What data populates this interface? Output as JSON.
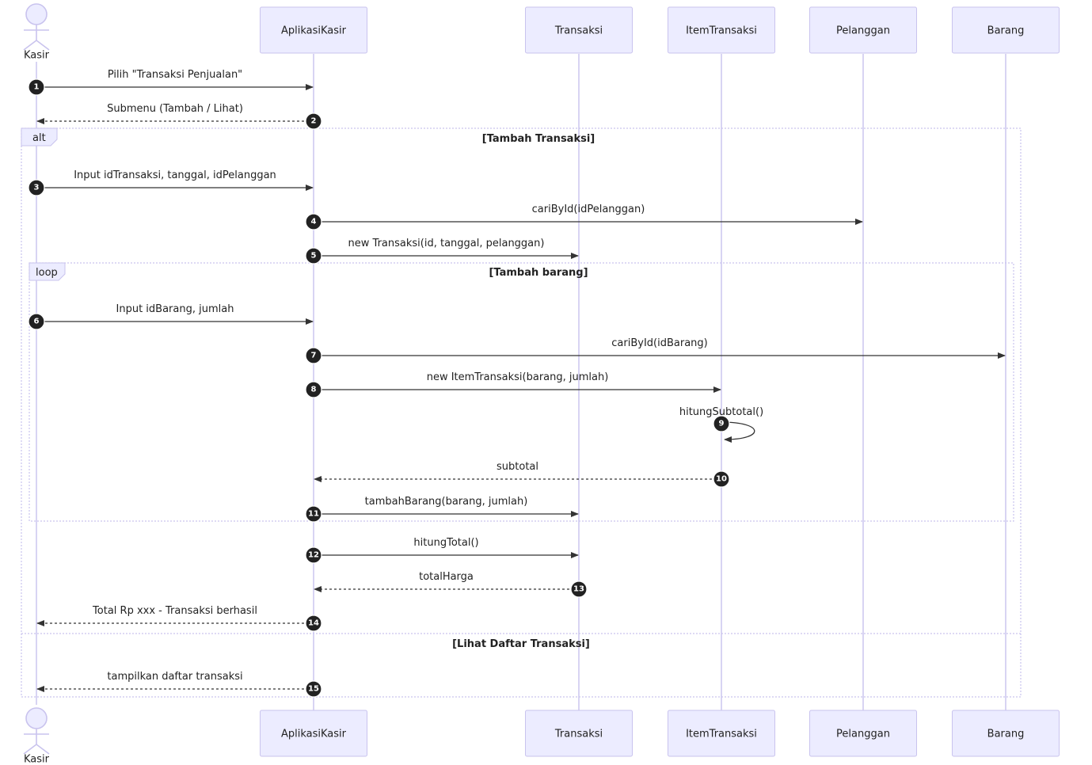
{
  "actors": [
    {
      "id": "kasir",
      "label": "Kasir",
      "kind": "person"
    },
    {
      "id": "aplikasi",
      "label": "AplikasiKasir",
      "kind": "box"
    },
    {
      "id": "transaksi",
      "label": "Transaksi",
      "kind": "box"
    },
    {
      "id": "item",
      "label": "ItemTransaksi",
      "kind": "box"
    },
    {
      "id": "pelanggan",
      "label": "Pelanggan",
      "kind": "box"
    },
    {
      "id": "barang",
      "label": "Barang",
      "kind": "box"
    }
  ],
  "messages": [
    {
      "num": "1",
      "from": "kasir",
      "to": "aplikasi",
      "text": "Pilih \"Transaksi Penjualan\"",
      "style": "solid"
    },
    {
      "num": "2",
      "from": "aplikasi",
      "to": "kasir",
      "text": "Submenu (Tambah / Lihat)",
      "style": "dashed"
    },
    {
      "num": "3",
      "from": "kasir",
      "to": "aplikasi",
      "text": "Input idTransaksi, tanggal, idPelanggan",
      "style": "solid"
    },
    {
      "num": "4",
      "from": "aplikasi",
      "to": "pelanggan",
      "text": "cariById(idPelanggan)",
      "style": "solid"
    },
    {
      "num": "5",
      "from": "aplikasi",
      "to": "transaksi",
      "text": "new Transaksi(id, tanggal, pelanggan)",
      "style": "solid"
    },
    {
      "num": "6",
      "from": "kasir",
      "to": "aplikasi",
      "text": "Input idBarang, jumlah",
      "style": "solid"
    },
    {
      "num": "7",
      "from": "aplikasi",
      "to": "barang",
      "text": "cariById(idBarang)",
      "style": "solid"
    },
    {
      "num": "8",
      "from": "aplikasi",
      "to": "item",
      "text": "new ItemTransaksi(barang, jumlah)",
      "style": "solid"
    },
    {
      "num": "9",
      "from": "item",
      "to": "item",
      "text": "hitungSubtotal()",
      "style": "self"
    },
    {
      "num": "10",
      "from": "item",
      "to": "aplikasi",
      "text": "subtotal",
      "style": "dashed"
    },
    {
      "num": "11",
      "from": "aplikasi",
      "to": "transaksi",
      "text": "tambahBarang(barang, jumlah)",
      "style": "solid"
    },
    {
      "num": "12",
      "from": "aplikasi",
      "to": "transaksi",
      "text": "hitungTotal()",
      "style": "solid"
    },
    {
      "num": "13",
      "from": "transaksi",
      "to": "aplikasi",
      "text": "totalHarga",
      "style": "dashed"
    },
    {
      "num": "14",
      "from": "aplikasi",
      "to": "kasir",
      "text": "Total Rp xxx - Transaksi berhasil",
      "style": "dashed"
    },
    {
      "num": "15",
      "from": "aplikasi",
      "to": "kasir",
      "text": "tampilkan daftar transaksi",
      "style": "dashed"
    }
  ],
  "frames": [
    {
      "id": "alt",
      "label": "alt",
      "conditions": [
        "[Tambah Transaksi]",
        "[Lihat Daftar Transaksi]"
      ]
    },
    {
      "id": "loop",
      "label": "loop",
      "conditions": [
        "[Tambah barang]"
      ]
    }
  ]
}
